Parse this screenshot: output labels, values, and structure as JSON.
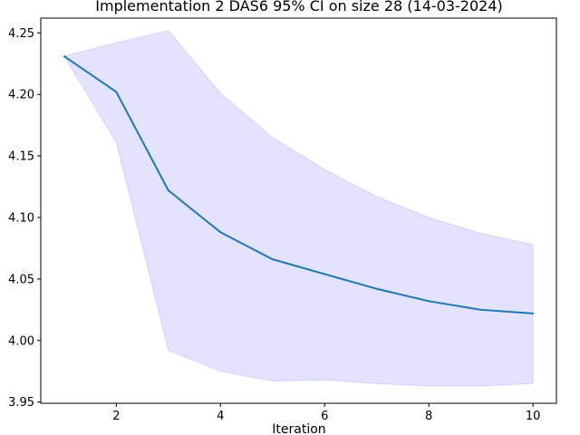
{
  "chart_data": {
    "type": "line",
    "title": "Implementation 2 DAS6 95% CI on size 28 (14-03-2024)",
    "xlabel": "Iteration",
    "ylabel": "",
    "xlim": [
      0.55,
      10.45
    ],
    "ylim": [
      3.949,
      4.262
    ],
    "xticks": [
      2,
      4,
      6,
      8,
      10
    ],
    "xtick_labels": [
      "2",
      "4",
      "6",
      "8",
      "10"
    ],
    "yticks": [
      3.95,
      4.0,
      4.05,
      4.1,
      4.15,
      4.2,
      4.25
    ],
    "ytick_labels": [
      "3.95",
      "4.00",
      "4.05",
      "4.10",
      "4.15",
      "4.20",
      "4.25"
    ],
    "grid": false,
    "x": [
      1,
      2,
      3,
      4,
      5,
      6,
      7,
      8,
      9,
      10
    ],
    "series": [
      {
        "values": [
          4.231,
          4.202,
          4.122,
          4.088,
          4.066,
          4.054,
          4.042,
          4.032,
          4.025,
          4.022
        ],
        "ci_lower": [
          4.231,
          4.161,
          3.992,
          3.975,
          3.967,
          3.968,
          3.965,
          3.963,
          3.963,
          3.965
        ],
        "ci_upper": [
          4.231,
          4.242,
          4.252,
          4.201,
          4.165,
          4.139,
          4.117,
          4.1,
          4.087,
          4.078
        ],
        "color": "#1f77b4",
        "band_color": "#0000ff"
      }
    ]
  }
}
